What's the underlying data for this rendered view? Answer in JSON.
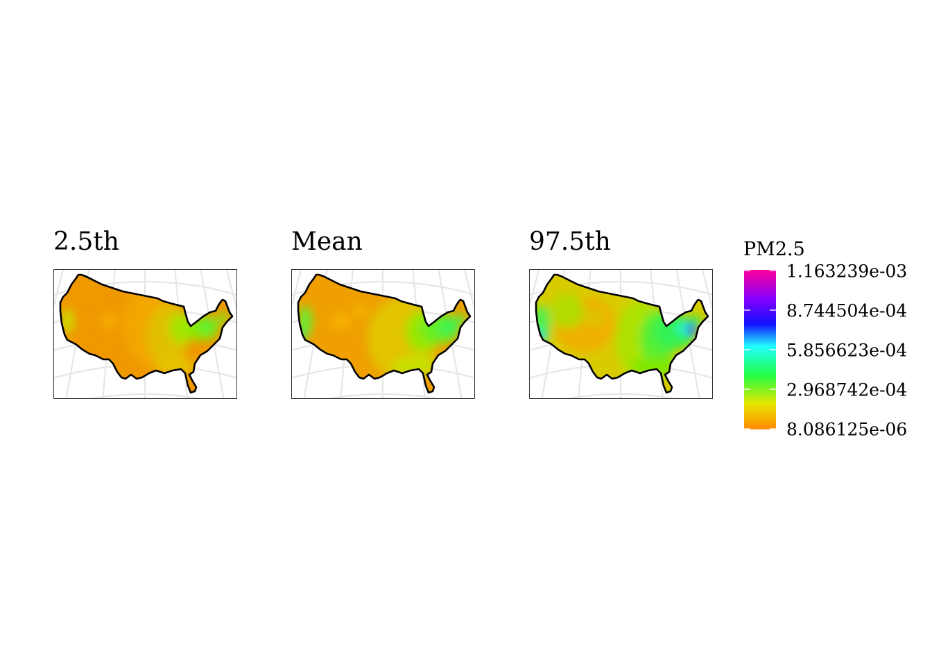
{
  "panels": [
    {
      "title": "2.5th"
    },
    {
      "title": "Mean"
    },
    {
      "title": "97.5th"
    }
  ],
  "legend": {
    "title": "PM2.5",
    "ticks": [
      "1.163239e-03",
      "8.744504e-04",
      "5.856623e-04",
      "2.968742e-04",
      "8.086125e-06"
    ],
    "min": 8.086125e-06,
    "max": 0.001163239,
    "colors": [
      "#ff8800",
      "#e6e600",
      "#22ff44",
      "#22ffff",
      "#1111ff",
      "#8800ff",
      "#ff0099"
    ]
  },
  "colors": {
    "grid": "#e6e6e6",
    "frame": "#333333",
    "outline": "#000000"
  }
}
